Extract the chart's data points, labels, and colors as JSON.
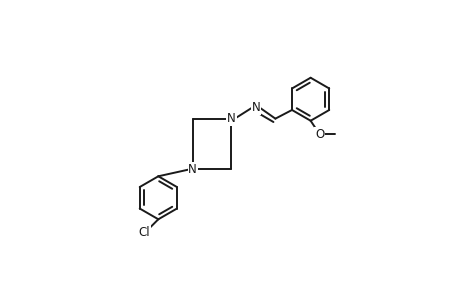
{
  "bg_color": "#ffffff",
  "line_color": "#1a1a1a",
  "lw": 1.4,
  "dbo": 0.013,
  "figsize": [
    4.6,
    3.0
  ],
  "dpi": 100,
  "xlim": [
    0,
    1
  ],
  "ylim": [
    0,
    1
  ]
}
